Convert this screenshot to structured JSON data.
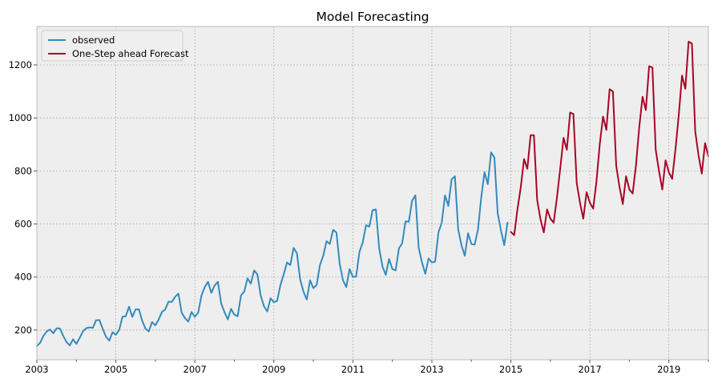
{
  "chart_data": {
    "type": "line",
    "title": "Model Forecasting",
    "xlabel": "",
    "ylabel": "",
    "xlim": [
      2003.0,
      2020.0
    ],
    "ylim": [
      88,
      1345
    ],
    "grid": true,
    "legend_position": "top-left",
    "x_ticks": [
      2003,
      2005,
      2007,
      2009,
      2011,
      2013,
      2015,
      2017,
      2019
    ],
    "x_tick_labels": [
      "2003",
      "2005",
      "2007",
      "2009",
      "2011",
      "2013",
      "2015",
      "2017",
      "2019"
    ],
    "y_ticks": [
      200,
      400,
      600,
      800,
      1000,
      1200
    ],
    "y_tick_labels": [
      "200",
      "400",
      "600",
      "800",
      "1000",
      "1200"
    ],
    "series": [
      {
        "name": "observed",
        "color": "#348ABD",
        "x_start": 2003.0,
        "x_step": 0.08333,
        "values": [
          140,
          152,
          178,
          195,
          202,
          188,
          207,
          206,
          178,
          155,
          142,
          165,
          148,
          170,
          195,
          207,
          210,
          208,
          237,
          238,
          205,
          175,
          160,
          192,
          182,
          200,
          250,
          252,
          288,
          250,
          278,
          278,
          235,
          205,
          195,
          230,
          218,
          240,
          268,
          278,
          307,
          306,
          325,
          338,
          265,
          245,
          232,
          268,
          250,
          265,
          330,
          362,
          382,
          340,
          368,
          382,
          300,
          268,
          240,
          280,
          258,
          252,
          330,
          345,
          395,
          375,
          425,
          410,
          330,
          290,
          270,
          320,
          305,
          310,
          370,
          410,
          455,
          445,
          510,
          490,
          390,
          345,
          315,
          388,
          358,
          370,
          445,
          480,
          535,
          525,
          578,
          568,
          450,
          388,
          362,
          430,
          400,
          402,
          495,
          530,
          595,
          590,
          652,
          655,
          508,
          440,
          408,
          468,
          430,
          425,
          508,
          528,
          610,
          608,
          688,
          708,
          510,
          455,
          412,
          470,
          455,
          458,
          568,
          605,
          708,
          668,
          768,
          780,
          580,
          520,
          480,
          565,
          525,
          522,
          578,
          700,
          795,
          750,
          870,
          850,
          640,
          575,
          520,
          605
        ]
      },
      {
        "name": "One-Step ahead Forecast",
        "color": "#A60628",
        "x_start": 2015.0,
        "x_step": 0.08333,
        "values": [
          570,
          558,
          655,
          738,
          845,
          808,
          935,
          935,
          690,
          618,
          568,
          655,
          620,
          605,
          700,
          810,
          925,
          880,
          1020,
          1015,
          755,
          680,
          620,
          720,
          680,
          658,
          760,
          900,
          1005,
          955,
          1108,
          1100,
          820,
          740,
          675,
          780,
          730,
          715,
          820,
          965,
          1080,
          1030,
          1195,
          1190,
          880,
          800,
          730,
          840,
          795,
          770,
          880,
          1010,
          1160,
          1110,
          1288,
          1280,
          950,
          860,
          790,
          905,
          855
        ]
      }
    ]
  }
}
